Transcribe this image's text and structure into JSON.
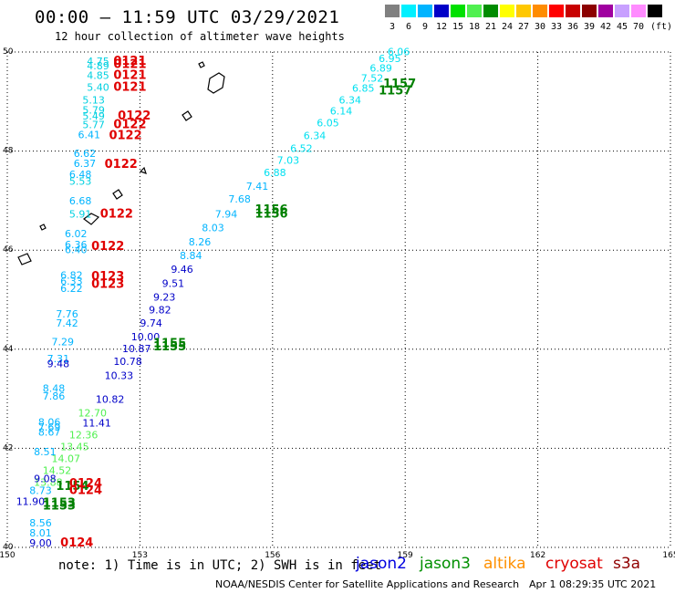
{
  "header": {
    "title": "00:00 – 11:59 UTC 03/29/2021",
    "subtitle": "12 hour collection of altimeter wave heights"
  },
  "color_scale": {
    "unit_label": "(ft)",
    "steps": [
      {
        "label": "3",
        "color": "#808080"
      },
      {
        "label": "6",
        "color": "#00f0ff"
      },
      {
        "label": "9",
        "color": "#00b4ff"
      },
      {
        "label": "12",
        "color": "#0000c8"
      },
      {
        "label": "15",
        "color": "#00e000"
      },
      {
        "label": "18",
        "color": "#50f050"
      },
      {
        "label": "21",
        "color": "#008c00"
      },
      {
        "label": "24",
        "color": "#ffff00"
      },
      {
        "label": "27",
        "color": "#ffc800"
      },
      {
        "label": "30",
        "color": "#ff8c00"
      },
      {
        "label": "33",
        "color": "#ff0000"
      },
      {
        "label": "36",
        "color": "#c80000"
      },
      {
        "label": "39",
        "color": "#8c0000"
      },
      {
        "label": "42",
        "color": "#a000a0"
      },
      {
        "label": "45",
        "color": "#c8a0ff"
      },
      {
        "label": "70",
        "color": "#ff8cff"
      },
      {
        "label": "",
        "color": "#000000"
      }
    ]
  },
  "map": {
    "lat_labels": [
      "50",
      "48",
      "46",
      "44",
      "42",
      "40"
    ],
    "lon_labels": [
      "150",
      "153",
      "156",
      "159",
      "162",
      "165"
    ],
    "lon_range": [
      150,
      165
    ],
    "lat_range": [
      40,
      50
    ]
  },
  "chart_data": {
    "type": "scatter",
    "xlabel": "",
    "ylabel": "",
    "xlim": [
      150,
      165
    ],
    "ylim": [
      40,
      50
    ],
    "track_labels": [
      {
        "text": "1157",
        "lon": 158.5,
        "lat": 49.28,
        "color": "#008000"
      },
      {
        "text": "1157",
        "lon": 158.4,
        "lat": 49.14,
        "color": "#008000"
      },
      {
        "text": "1156",
        "lon": 155.6,
        "lat": 46.74,
        "color": "#008000"
      },
      {
        "text": "1156",
        "lon": 155.6,
        "lat": 46.66,
        "color": "#008000"
      },
      {
        "text": "1155",
        "lon": 153.3,
        "lat": 44.04,
        "color": "#008000"
      },
      {
        "text": "1155",
        "lon": 153.3,
        "lat": 43.98,
        "color": "#008000"
      },
      {
        "text": "1154",
        "lon": 151.1,
        "lat": 41.16,
        "color": "#008000"
      },
      {
        "text": "1153",
        "lon": 150.8,
        "lat": 40.82,
        "color": "#008000"
      },
      {
        "text": "1153",
        "lon": 150.8,
        "lat": 40.76,
        "color": "#008000"
      },
      {
        "text": "0121",
        "lon": 152.4,
        "lat": 49.74,
        "color": "#e00000"
      },
      {
        "text": "0121",
        "lon": 152.4,
        "lat": 49.68,
        "color": "#e00000"
      },
      {
        "text": "0121",
        "lon": 152.4,
        "lat": 49.46,
        "color": "#e00000"
      },
      {
        "text": "0121",
        "lon": 152.4,
        "lat": 49.22,
        "color": "#e00000"
      },
      {
        "text": "0122",
        "lon": 152.5,
        "lat": 48.64,
        "color": "#e00000"
      },
      {
        "text": "0122",
        "lon": 152.4,
        "lat": 48.46,
        "color": "#e00000"
      },
      {
        "text": "0122",
        "lon": 152.3,
        "lat": 48.24,
        "color": "#e00000"
      },
      {
        "text": "0122",
        "lon": 152.2,
        "lat": 47.66,
        "color": "#e00000"
      },
      {
        "text": "0122",
        "lon": 152.1,
        "lat": 46.66,
        "color": "#e00000"
      },
      {
        "text": "0122",
        "lon": 151.9,
        "lat": 46.0,
        "color": "#e00000"
      },
      {
        "text": "0123",
        "lon": 151.9,
        "lat": 45.4,
        "color": "#e00000"
      },
      {
        "text": "0123",
        "lon": 151.9,
        "lat": 45.24,
        "color": "#e00000"
      },
      {
        "text": "0124",
        "lon": 151.4,
        "lat": 41.22,
        "color": "#e00000"
      },
      {
        "text": "0124",
        "lon": 151.4,
        "lat": 41.08,
        "color": "#e00000"
      },
      {
        "text": "0124",
        "lon": 151.2,
        "lat": 40.02,
        "color": "#e00000"
      }
    ],
    "west_column": [
      {
        "text": "4.75",
        "lon": 151.8,
        "lat": 49.74,
        "color": "#00d0e0"
      },
      {
        "text": "4.89",
        "lon": 151.8,
        "lat": 49.65,
        "color": "#00d0e0"
      },
      {
        "text": "4.85",
        "lon": 151.8,
        "lat": 49.46,
        "color": "#00d0e0"
      },
      {
        "text": "5.40",
        "lon": 151.8,
        "lat": 49.22,
        "color": "#00d0e0"
      },
      {
        "text": "5.13",
        "lon": 151.7,
        "lat": 48.96,
        "color": "#00d0e0"
      },
      {
        "text": "5.79",
        "lon": 151.7,
        "lat": 48.76,
        "color": "#00d0e0"
      },
      {
        "text": "5.49",
        "lon": 151.7,
        "lat": 48.64,
        "color": "#00d0e0"
      },
      {
        "text": "5.77",
        "lon": 151.7,
        "lat": 48.46,
        "color": "#00d0e0"
      },
      {
        "text": "6.41",
        "lon": 151.6,
        "lat": 48.26,
        "color": "#00b4ff"
      },
      {
        "text": "6.62",
        "lon": 151.5,
        "lat": 47.88,
        "color": "#00b4ff"
      },
      {
        "text": "6.37",
        "lon": 151.5,
        "lat": 47.68,
        "color": "#00b4ff"
      },
      {
        "text": "6.48",
        "lon": 151.4,
        "lat": 47.46,
        "color": "#00b4ff"
      },
      {
        "text": "5.53",
        "lon": 151.4,
        "lat": 47.32,
        "color": "#00d0e0"
      },
      {
        "text": "6.68",
        "lon": 151.4,
        "lat": 46.92,
        "color": "#00b4ff"
      },
      {
        "text": "5.91",
        "lon": 151.4,
        "lat": 46.66,
        "color": "#00d0e0"
      },
      {
        "text": "6.02",
        "lon": 151.3,
        "lat": 46.26,
        "color": "#00b4ff"
      },
      {
        "text": "6.36",
        "lon": 151.3,
        "lat": 46.04,
        "color": "#00b4ff"
      },
      {
        "text": "6.40",
        "lon": 151.3,
        "lat": 45.94,
        "color": "#00b4ff"
      },
      {
        "text": "6.82",
        "lon": 151.2,
        "lat": 45.42,
        "color": "#00b4ff"
      },
      {
        "text": "6.33",
        "lon": 151.2,
        "lat": 45.3,
        "color": "#00b4ff"
      },
      {
        "text": "6.22",
        "lon": 151.2,
        "lat": 45.16,
        "color": "#00b4ff"
      },
      {
        "text": "7.76",
        "lon": 151.1,
        "lat": 44.64,
        "color": "#00b4ff"
      },
      {
        "text": "7.42",
        "lon": 151.1,
        "lat": 44.46,
        "color": "#00b4ff"
      },
      {
        "text": "7.29",
        "lon": 151.0,
        "lat": 44.08,
        "color": "#00b4ff"
      },
      {
        "text": "7.31",
        "lon": 150.9,
        "lat": 43.74,
        "color": "#00b4ff"
      },
      {
        "text": "9.48",
        "lon": 150.9,
        "lat": 43.64,
        "color": "#0000c8"
      },
      {
        "text": "8.48",
        "lon": 150.8,
        "lat": 43.14,
        "color": "#00b4ff"
      },
      {
        "text": "7.86",
        "lon": 150.8,
        "lat": 42.98,
        "color": "#00b4ff"
      },
      {
        "text": "8.06",
        "lon": 150.7,
        "lat": 42.46,
        "color": "#00b4ff"
      },
      {
        "text": "7.69",
        "lon": 150.7,
        "lat": 42.36,
        "color": "#00b4ff"
      },
      {
        "text": "8.67",
        "lon": 150.7,
        "lat": 42.26,
        "color": "#00b4ff"
      },
      {
        "text": "8.51",
        "lon": 150.6,
        "lat": 41.86,
        "color": "#00b4ff"
      },
      {
        "text": "9.08",
        "lon": 150.6,
        "lat": 41.32,
        "color": "#0000c8"
      },
      {
        "text": "8.73",
        "lon": 150.5,
        "lat": 41.08,
        "color": "#00b4ff"
      },
      {
        "text": "11.90",
        "lon": 150.2,
        "lat": 40.86,
        "color": "#0000c8"
      },
      {
        "text": "8.56",
        "lon": 150.5,
        "lat": 40.42,
        "color": "#00b4ff"
      },
      {
        "text": "8.01",
        "lon": 150.5,
        "lat": 40.22,
        "color": "#00b4ff"
      },
      {
        "text": "9.00",
        "lon": 150.5,
        "lat": 40.02,
        "color": "#0000c8"
      }
    ],
    "east_track_labels": [
      {
        "text": "6.06",
        "lon": 158.6,
        "lat": 49.94,
        "color": "#00e0f0"
      },
      {
        "text": "6.95",
        "lon": 158.4,
        "lat": 49.8,
        "color": "#00e0f0"
      },
      {
        "text": "6.89",
        "lon": 158.2,
        "lat": 49.6,
        "color": "#00e0f0"
      },
      {
        "text": "7.52",
        "lon": 158.0,
        "lat": 49.4,
        "color": "#00e0f0"
      },
      {
        "text": "6.85",
        "lon": 157.8,
        "lat": 49.2,
        "color": "#00e0f0"
      },
      {
        "text": "6.34",
        "lon": 157.5,
        "lat": 48.96,
        "color": "#00e0f0"
      },
      {
        "text": "6.14",
        "lon": 157.3,
        "lat": 48.74,
        "color": "#00e0f0"
      },
      {
        "text": "6.05",
        "lon": 157.0,
        "lat": 48.5,
        "color": "#00e0f0"
      },
      {
        "text": "6.34",
        "lon": 156.7,
        "lat": 48.24,
        "color": "#00e0f0"
      },
      {
        "text": "6.52",
        "lon": 156.4,
        "lat": 47.98,
        "color": "#00e0f0"
      },
      {
        "text": "7.03",
        "lon": 156.1,
        "lat": 47.74,
        "color": "#00e0f0"
      },
      {
        "text": "6.88",
        "lon": 155.8,
        "lat": 47.5,
        "color": "#00e0f0"
      },
      {
        "text": "7.41",
        "lon": 155.4,
        "lat": 47.22,
        "color": "#00b4ff"
      },
      {
        "text": "7.68",
        "lon": 155.0,
        "lat": 46.96,
        "color": "#00b4ff"
      },
      {
        "text": "7.94",
        "lon": 154.7,
        "lat": 46.66,
        "color": "#00b4ff"
      },
      {
        "text": "8.03",
        "lon": 154.4,
        "lat": 46.38,
        "color": "#00b4ff"
      },
      {
        "text": "8.26",
        "lon": 154.1,
        "lat": 46.1,
        "color": "#00b4ff"
      },
      {
        "text": "8.84",
        "lon": 153.9,
        "lat": 45.82,
        "color": "#00b4ff"
      },
      {
        "text": "9.46",
        "lon": 153.7,
        "lat": 45.54,
        "color": "#0000c8"
      },
      {
        "text": "9.51",
        "lon": 153.5,
        "lat": 45.26,
        "color": "#0000c8"
      },
      {
        "text": "9.23",
        "lon": 153.3,
        "lat": 44.98,
        "color": "#0000c8"
      },
      {
        "text": "9.82",
        "lon": 153.2,
        "lat": 44.72,
        "color": "#0000c8"
      },
      {
        "text": "9.74",
        "lon": 153.0,
        "lat": 44.46,
        "color": "#0000c8"
      },
      {
        "text": "10.00",
        "lon": 152.8,
        "lat": 44.18,
        "color": "#0000c8"
      },
      {
        "text": "10.87",
        "lon": 152.6,
        "lat": 43.94,
        "color": "#0000c8"
      },
      {
        "text": "10.78",
        "lon": 152.4,
        "lat": 43.68,
        "color": "#0000c8"
      },
      {
        "text": "10.33",
        "lon": 152.2,
        "lat": 43.4,
        "color": "#0000c8"
      },
      {
        "text": "10.82",
        "lon": 152.0,
        "lat": 42.92,
        "color": "#0000c8"
      },
      {
        "text": "11.41",
        "lon": 151.7,
        "lat": 42.44,
        "color": "#0000c8"
      },
      {
        "text": "12.70",
        "lon": 151.6,
        "lat": 42.64,
        "color": "#50f050"
      },
      {
        "text": "12.36",
        "lon": 151.4,
        "lat": 42.2,
        "color": "#50f050"
      },
      {
        "text": "13.45",
        "lon": 151.2,
        "lat": 41.96,
        "color": "#50f050"
      },
      {
        "text": "14.07",
        "lon": 151.0,
        "lat": 41.72,
        "color": "#50f050"
      },
      {
        "text": "14.52",
        "lon": 150.8,
        "lat": 41.48,
        "color": "#50f050"
      },
      {
        "text": "13.88",
        "lon": 150.6,
        "lat": 41.24,
        "color": "#50f050"
      }
    ]
  },
  "footer": {
    "note": "note: 1) Time is in UTC; 2) SWH is in feet",
    "satellites": [
      {
        "name": "jason2",
        "color": "#0000e0"
      },
      {
        "name": "jason3",
        "color": "#009000"
      },
      {
        "name": "altika",
        "color": "#ff9000"
      },
      {
        "name": "cryosat",
        "color": "#e00000"
      },
      {
        "name": "s3a",
        "color": "#900000"
      }
    ],
    "credit": "NOAA/NESDIS Center for Satellite Applications and Research",
    "timestamp": "Apr  1 08:29:35 UTC 2021"
  }
}
